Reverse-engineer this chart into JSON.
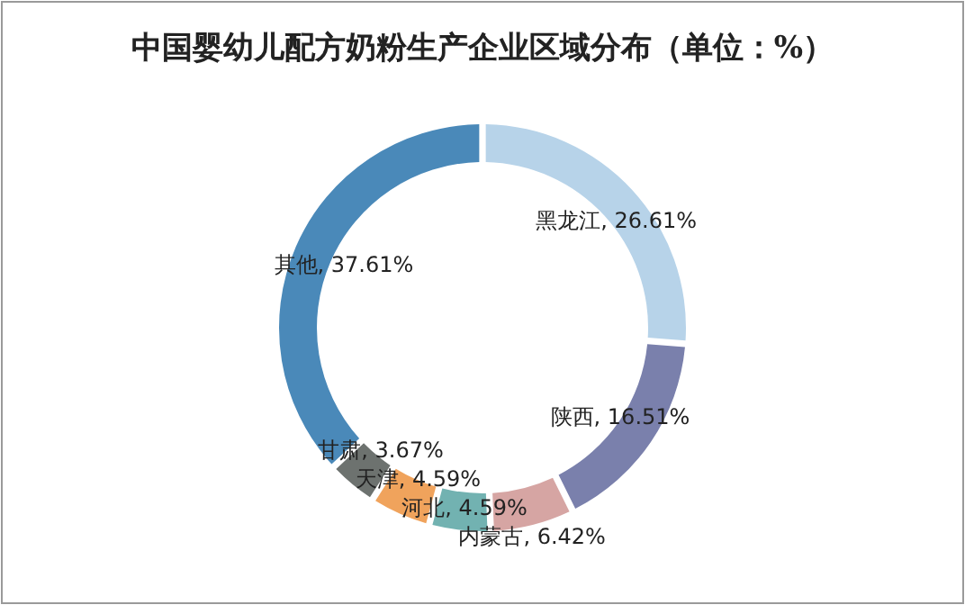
{
  "chart_data": {
    "type": "donut",
    "title": "中国婴幼儿配方奶粉生产企业区域分布（单位：%）",
    "categories": [
      "黑龙江",
      "陕西",
      "内蒙古",
      "河北",
      "天津",
      "甘肃",
      "其他"
    ],
    "values": [
      26.61,
      16.51,
      6.42,
      4.59,
      4.59,
      3.67,
      37.61
    ],
    "colors": [
      "#b7d3e9",
      "#7a80ac",
      "#d6a5a3",
      "#72b2b1",
      "#f0a35c",
      "#6d726f",
      "#4a89b9"
    ],
    "value_labels": [
      ", 26.61%",
      ", 16.51%",
      ", 6.42%",
      ", 4.59%",
      ", 4.59%",
      ", 3.67%",
      ", 37.61%"
    ],
    "legend": false
  }
}
